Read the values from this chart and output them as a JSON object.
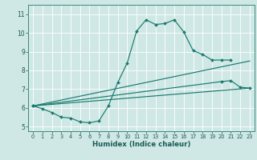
{
  "xlabel": "Humidex (Indice chaleur)",
  "xlim": [
    -0.5,
    23.5
  ],
  "ylim": [
    4.75,
    11.5
  ],
  "yticks": [
    5,
    6,
    7,
    8,
    9,
    10,
    11
  ],
  "xticks": [
    0,
    1,
    2,
    3,
    4,
    5,
    6,
    7,
    8,
    9,
    10,
    11,
    12,
    13,
    14,
    15,
    16,
    17,
    18,
    19,
    20,
    21,
    22,
    23
  ],
  "bg_color": "#cfe8e6",
  "grid_color": "#ffffff",
  "line_color": "#1a7a6e",
  "line1_x": [
    0,
    1,
    2,
    3,
    4,
    5,
    6,
    7,
    8,
    9,
    10,
    11,
    12,
    13,
    14,
    15,
    16,
    17,
    18,
    19,
    20,
    21
  ],
  "line1_y": [
    6.1,
    5.95,
    5.75,
    5.5,
    5.45,
    5.25,
    5.2,
    5.3,
    6.1,
    7.35,
    8.4,
    10.1,
    10.7,
    10.45,
    10.5,
    10.7,
    10.05,
    9.05,
    8.85,
    8.55,
    8.55,
    8.55
  ],
  "line2_x": [
    0,
    20,
    21,
    22,
    23
  ],
  "line2_y": [
    6.1,
    7.4,
    7.45,
    7.1,
    7.05
  ],
  "line3_x": [
    0,
    23
  ],
  "line3_y": [
    6.1,
    8.5
  ],
  "line4_x": [
    0,
    23
  ],
  "line4_y": [
    6.1,
    7.05
  ]
}
